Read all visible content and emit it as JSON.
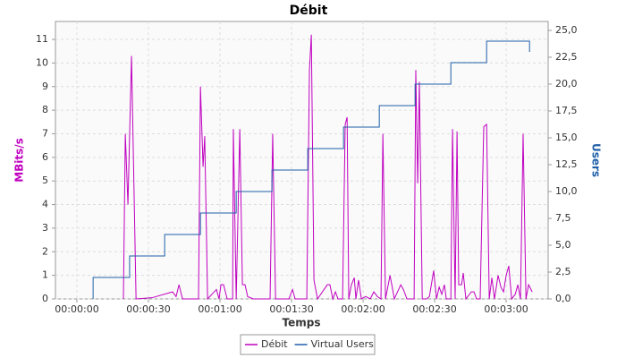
{
  "chart_data": {
    "type": "line",
    "title": "Débit",
    "x_label": "Temps",
    "y_label": "MBits/s",
    "y2_label": "Users",
    "xlim": [
      -9,
      197.6
    ],
    "ylim": [
      0,
      11.76
    ],
    "y2lim": [
      0,
      25.83
    ],
    "grid": true,
    "legend": "bottom",
    "xticks": [
      {
        "value": 0,
        "label": "00:00:00"
      },
      {
        "value": 30,
        "label": "00:00:30"
      },
      {
        "value": 60,
        "label": "00:01:00"
      },
      {
        "value": 90,
        "label": "00:01:30"
      },
      {
        "value": 120,
        "label": "00:02:00"
      },
      {
        "value": 150,
        "label": "00:02:30"
      },
      {
        "value": 180,
        "label": "00:03:00"
      }
    ],
    "yticks": [
      0,
      1,
      2,
      3,
      4,
      5,
      6,
      7,
      8,
      9,
      10,
      11
    ],
    "y2ticks": [
      {
        "value": 0,
        "label": "0,0"
      },
      {
        "value": 2.5,
        "label": "2,5"
      },
      {
        "value": 5,
        "label": "5,0"
      },
      {
        "value": 7.5,
        "label": "7,5"
      },
      {
        "value": 10,
        "label": "10,0"
      },
      {
        "value": 12.5,
        "label": "12,5"
      },
      {
        "value": 15,
        "label": "15,0"
      },
      {
        "value": 17.5,
        "label": "17,5"
      },
      {
        "value": 20,
        "label": "20,0"
      },
      {
        "value": 22.5,
        "label": "22,5"
      },
      {
        "value": 25,
        "label": "25,0"
      }
    ],
    "series": [
      {
        "name": "Débit",
        "color": "#c000c0",
        "x": [
          19.5,
          20.3,
          21.4,
          22.9,
          24.8,
          31.5,
          40.1,
          41.6,
          42.8,
          44.3,
          51,
          51.8,
          52.9,
          53.6,
          54.8,
          58.5,
          59.6,
          60.4,
          61.5,
          63,
          65.3,
          65.6,
          66.8,
          68.3,
          69.4,
          70.5,
          71.6,
          73.9,
          81,
          82.1,
          83.3,
          88.9,
          90.4,
          91.5,
          96.4,
          97.5,
          98.3,
          99.4,
          100.9,
          105,
          106.1,
          107.3,
          108.4,
          109.5,
          111.4,
          112.5,
          113.3,
          114,
          115.1,
          116.3,
          117,
          118.1,
          119.3,
          121.1,
          123,
          124.5,
          126,
          127.5,
          128.3,
          129.4,
          131.3,
          132.4,
          133.1,
          135.8,
          136.9,
          138.4,
          139.9,
          141.4,
          142.1,
          142.9,
          143.6,
          144.8,
          146.6,
          147.8,
          149.6,
          150.8,
          151.9,
          153,
          154.1,
          154.9,
          156.8,
          157.5,
          158.6,
          159.4,
          160.1,
          161.3,
          162,
          163.1,
          165.4,
          166.5,
          167.6,
          169.1,
          170.6,
          171.8,
          172.9,
          174,
          175.1,
          176.6,
          177.8,
          178.9,
          180,
          181.1,
          182.3,
          183.8,
          184.9,
          186,
          187.1,
          188.3,
          189.4,
          190.9
        ],
        "values": [
          0,
          7,
          4,
          10.3,
          0,
          0.05,
          0.3,
          0.1,
          0.6,
          0,
          0,
          9,
          5.6,
          6.9,
          0,
          0.4,
          0,
          0.6,
          0.6,
          0,
          0,
          7.2,
          0,
          7.2,
          0.6,
          0.6,
          0.1,
          0,
          0,
          7,
          0,
          0,
          0.4,
          0,
          0,
          9.7,
          11.2,
          0.8,
          0,
          0.6,
          0.6,
          0,
          0.3,
          0,
          0,
          7.4,
          7.7,
          0,
          0.6,
          0.9,
          0,
          0.8,
          0,
          0.1,
          0,
          0.3,
          0.1,
          0,
          7,
          0,
          1,
          0.4,
          0,
          0.6,
          0.4,
          0,
          0,
          0,
          9.7,
          4.9,
          9.2,
          0,
          0,
          0.1,
          1.2,
          0,
          0.5,
          0.2,
          0.6,
          0,
          0,
          7.2,
          0,
          7.1,
          0.6,
          0.6,
          1.1,
          0,
          0.3,
          0.3,
          0,
          0,
          7.3,
          7.4,
          0,
          0.9,
          0,
          1,
          0.5,
          0.3,
          1,
          1.4,
          0,
          0.2,
          0.6,
          0,
          7,
          0,
          0.6,
          0.3
        ]
      },
      {
        "name": "Virtual Users",
        "color": "#1f5fa8",
        "axis": "y2",
        "x": [
          6.8,
          6.8,
          22.1,
          22.1,
          36.8,
          36.8,
          51.8,
          51.8,
          66.8,
          66.8,
          81.8,
          81.8,
          96.8,
          96.8,
          111.8,
          111.8,
          126.8,
          126.8,
          141.8,
          141.8,
          156.8,
          156.8,
          171.8,
          171.8,
          189.8,
          189.8
        ],
        "values": [
          0,
          2,
          2,
          4,
          4,
          6,
          6,
          8,
          8,
          10,
          10,
          12,
          12,
          14,
          14,
          16,
          16,
          18,
          18,
          20,
          20,
          22,
          22,
          24,
          24,
          23
        ]
      }
    ]
  }
}
